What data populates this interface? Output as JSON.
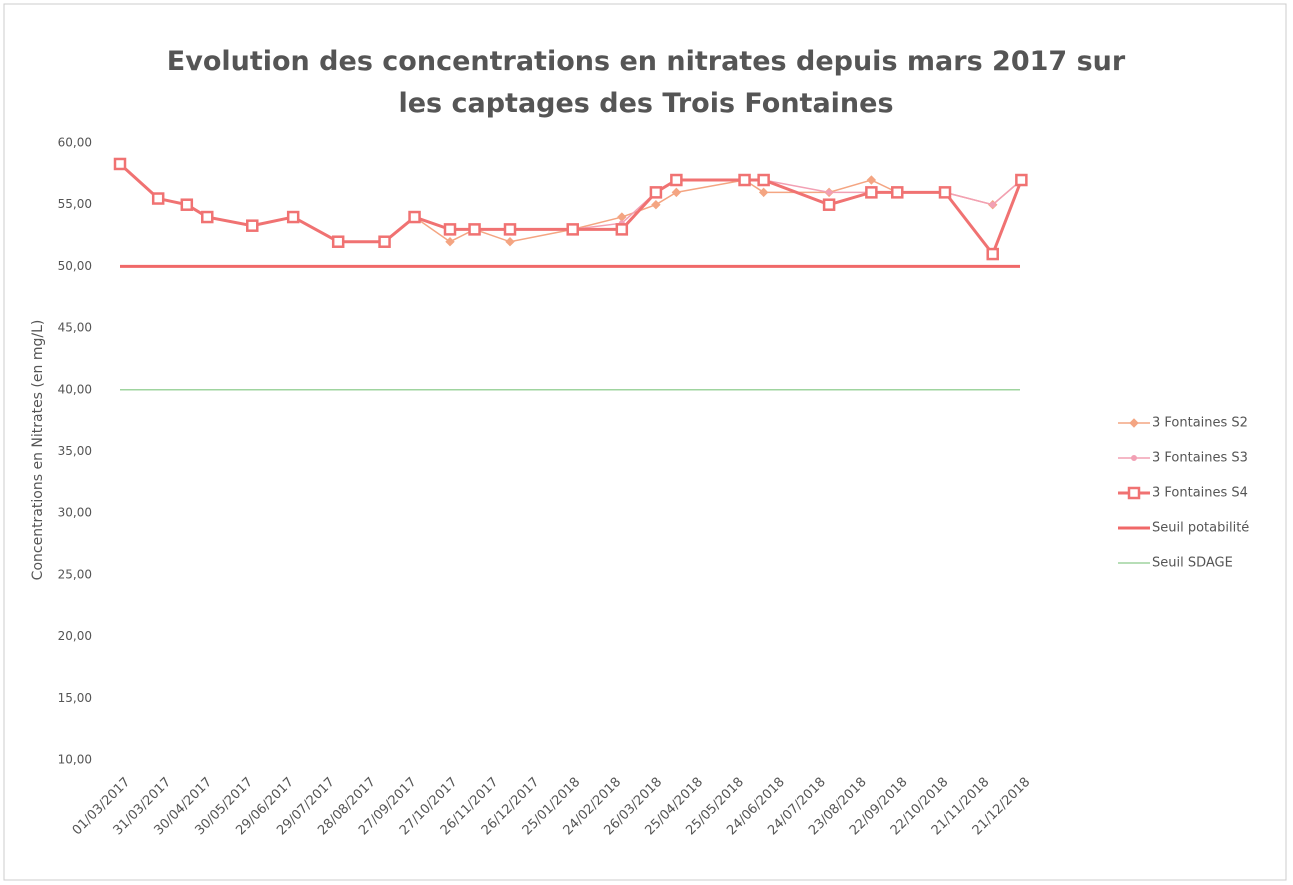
{
  "chart_data": {
    "type": "line",
    "title": "Evolution des concentrations en nitrates depuis mars 2017 sur les captages des Trois Fontaines",
    "y_label": "Concentrations en Nitrates  (en mg/L)",
    "x": [
      "01/03/2017",
      "29/03/2017",
      "19/04/2017",
      "04/05/2017",
      "06/06/2017",
      "06/07/2017",
      "08/08/2017",
      "11/09/2017",
      "03/10/2017",
      "29/10/2017",
      "16/11/2017",
      "12/12/2017",
      "27/01/2018",
      "04/03/2018",
      "29/03/2018",
      "13/04/2018",
      "02/06/2018",
      "16/06/2018",
      "03/08/2018",
      "03/09/2018",
      "22/09/2018",
      "27/10/2018",
      "01/12/2018",
      "22/12/2018"
    ],
    "series": [
      {
        "name": "3 Fontaines S2",
        "color": "#f4a582",
        "marker": "diamond",
        "values": [
          58.3,
          55.5,
          55,
          54,
          53.3,
          54,
          52,
          52,
          54,
          52,
          53,
          52,
          53,
          54,
          55,
          56,
          57,
          56,
          56,
          57,
          56,
          56,
          55,
          57
        ]
      },
      {
        "name": "3 Fontaines S3",
        "color": "#f2a0b4",
        "marker": "star",
        "values": [
          58.3,
          55.5,
          55,
          54,
          53.3,
          54,
          52,
          52,
          54,
          53,
          53,
          53,
          53,
          53.5,
          56,
          57,
          57,
          57,
          56,
          56,
          56,
          56,
          55,
          57
        ]
      },
      {
        "name": "3 Fontaines S4",
        "color": "#f07272",
        "marker": "square",
        "values": [
          58.3,
          55.5,
          55,
          54,
          53.3,
          54,
          52,
          52,
          54,
          53,
          53,
          53,
          53,
          53,
          56,
          57,
          57,
          57,
          55,
          56,
          56,
          56,
          51,
          57
        ]
      },
      {
        "name": "Seuil potabilité",
        "color": "#f06868",
        "marker": "none",
        "x": [
          "01/03/2017",
          "21/12/2018"
        ],
        "values": [
          50,
          50
        ]
      },
      {
        "name": "Seuil SDAGE",
        "color": "#9fd49f",
        "marker": "none",
        "x": [
          "01/03/2017",
          "21/12/2018"
        ],
        "values": [
          40,
          40
        ]
      }
    ],
    "xlim": [
      "01/03/2017",
      "21/12/2018"
    ],
    "xticks": [
      "01/03/2017",
      "31/03/2017",
      "30/04/2017",
      "30/05/2017",
      "29/06/2017",
      "29/07/2017",
      "28/08/2017",
      "27/09/2017",
      "27/10/2017",
      "26/11/2017",
      "26/12/2017",
      "25/01/2018",
      "24/02/2018",
      "26/03/2018",
      "25/04/2018",
      "25/05/2018",
      "24/06/2018",
      "24/07/2018",
      "23/08/2018",
      "22/09/2018",
      "22/10/2018",
      "21/11/2018",
      "21/12/2018"
    ],
    "ylim": [
      10,
      60
    ],
    "yticks": [
      {
        "value": 60,
        "label": "60,00"
      },
      {
        "value": 55,
        "label": "55,00"
      },
      {
        "value": 50,
        "label": "50,00"
      },
      {
        "value": 45,
        "label": "45,00"
      },
      {
        "value": 40,
        "label": "40,00"
      },
      {
        "value": 35,
        "label": "35,00"
      },
      {
        "value": 30,
        "label": "30,00"
      },
      {
        "value": 25,
        "label": "25,00"
      },
      {
        "value": 20,
        "label": "20,00"
      },
      {
        "value": 15,
        "label": "15,00"
      },
      {
        "value": 10,
        "label": "10,00"
      }
    ],
    "grid": false,
    "legend": "right"
  }
}
